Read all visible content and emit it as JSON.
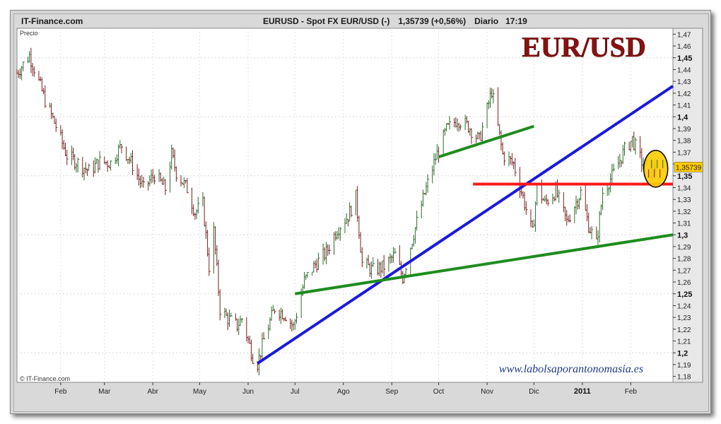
{
  "header": {
    "site": "IT-Finance.com",
    "instrument": "EURUSD - Spot FX EUR/USD (-)",
    "quote": "1,35739 (+0,56%)",
    "period": "Diario",
    "time": "17:19"
  },
  "plot_label": "Precio",
  "copyright": "© IT-Finance.com",
  "watermark": "www.labolsaporantonomasia.es",
  "big_title": "EUR/USD",
  "last_price_label": "1,35739",
  "colors": {
    "price_up": "#2e6b2e",
    "price_down": "#7a1f1f",
    "blue_trend": "#1a1adb",
    "green_trend": "#1e8c1e",
    "red_support": "#ff1a1a",
    "last_price_bg": "#ffcc00",
    "title": "#8b1010"
  },
  "chart_data": {
    "type": "line",
    "ylim": [
      1.175,
      1.475
    ],
    "yticks": [
      "1,47",
      "1,46",
      "1,45",
      "1,44",
      "1,43",
      "1,42",
      "1,41",
      "1,4",
      "1,39",
      "1,38",
      "1,37",
      "1,36",
      "1,35",
      "1,34",
      "1,33",
      "1,32",
      "1,31",
      "1,3",
      "1,29",
      "1,28",
      "1,27",
      "1,26",
      "1,25",
      "1,24",
      "1,23",
      "1,22",
      "1,21",
      "1,2",
      "1,19",
      "1,18"
    ],
    "yticks_bold": [
      "1,45",
      "1,4",
      "1,35",
      "1,3",
      "1,25",
      "1,2"
    ],
    "xticks": [
      {
        "label": "Feb",
        "x": "2010-02-01"
      },
      {
        "label": "Mar",
        "x": "2010-03-01"
      },
      {
        "label": "Abr",
        "x": "2010-04-01"
      },
      {
        "label": "May",
        "x": "2010-05-01"
      },
      {
        "label": "Jun",
        "x": "2010-06-01"
      },
      {
        "label": "Jul",
        "x": "2010-07-01"
      },
      {
        "label": "Ago",
        "x": "2010-08-01"
      },
      {
        "label": "Sep",
        "x": "2010-09-01"
      },
      {
        "label": "Oct",
        "x": "2010-10-01"
      },
      {
        "label": "Nov",
        "x": "2010-11-01"
      },
      {
        "label": "Dic",
        "x": "2010-12-01"
      },
      {
        "label": "2011",
        "x": "2011-01-01",
        "bold": true
      },
      {
        "label": "Feb",
        "x": "2011-02-01"
      }
    ],
    "xlim": [
      "2010-01-04",
      "2011-02-28"
    ],
    "series": [
      {
        "values": [
          [
            "2010-01-04",
            1.437
          ],
          [
            "2010-01-12",
            1.452
          ],
          [
            "2010-01-15",
            1.441
          ],
          [
            "2010-01-22",
            1.414
          ],
          [
            "2010-01-29",
            1.392
          ],
          [
            "2010-02-05",
            1.367
          ],
          [
            "2010-02-12",
            1.361
          ],
          [
            "2010-02-19",
            1.354
          ],
          [
            "2010-02-26",
            1.362
          ],
          [
            "2010-03-05",
            1.361
          ],
          [
            "2010-03-12",
            1.376
          ],
          [
            "2010-03-19",
            1.359
          ],
          [
            "2010-03-26",
            1.339
          ],
          [
            "2010-04-02",
            1.351
          ],
          [
            "2010-04-09",
            1.339
          ],
          [
            "2010-04-13",
            1.368
          ],
          [
            "2010-04-16",
            1.353
          ],
          [
            "2010-04-23",
            1.339
          ],
          [
            "2010-04-28",
            1.319
          ],
          [
            "2010-05-03",
            1.326
          ],
          [
            "2010-05-07",
            1.273
          ],
          [
            "2010-05-10",
            1.303
          ],
          [
            "2010-05-14",
            1.237
          ],
          [
            "2010-05-19",
            1.229
          ],
          [
            "2010-05-25",
            1.223
          ],
          [
            "2010-05-28",
            1.229
          ],
          [
            "2010-06-04",
            1.197
          ],
          [
            "2010-06-07",
            1.191
          ],
          [
            "2010-06-11",
            1.211
          ],
          [
            "2010-06-18",
            1.238
          ],
          [
            "2010-06-25",
            1.232
          ],
          [
            "2010-06-30",
            1.222
          ],
          [
            "2010-07-07",
            1.261
          ],
          [
            "2010-07-14",
            1.275
          ],
          [
            "2010-07-21",
            1.285
          ],
          [
            "2010-07-28",
            1.305
          ],
          [
            "2010-08-04",
            1.316
          ],
          [
            "2010-08-09",
            1.332
          ],
          [
            "2010-08-13",
            1.276
          ],
          [
            "2010-08-20",
            1.27
          ],
          [
            "2010-08-27",
            1.273
          ],
          [
            "2010-09-03",
            1.283
          ],
          [
            "2010-09-08",
            1.264
          ],
          [
            "2010-09-15",
            1.301
          ],
          [
            "2010-09-22",
            1.335
          ],
          [
            "2010-09-29",
            1.365
          ],
          [
            "2010-10-06",
            1.389
          ],
          [
            "2010-10-13",
            1.398
          ],
          [
            "2010-10-20",
            1.392
          ],
          [
            "2010-10-27",
            1.38
          ],
          [
            "2010-11-04",
            1.422
          ],
          [
            "2010-11-11",
            1.368
          ],
          [
            "2010-11-18",
            1.36
          ],
          [
            "2010-11-24",
            1.332
          ],
          [
            "2010-11-30",
            1.301
          ],
          [
            "2010-12-03",
            1.34
          ],
          [
            "2010-12-08",
            1.327
          ],
          [
            "2010-12-15",
            1.337
          ],
          [
            "2010-12-22",
            1.311
          ],
          [
            "2010-12-31",
            1.336
          ],
          [
            "2011-01-05",
            1.308
          ],
          [
            "2011-01-10",
            1.292
          ],
          [
            "2011-01-14",
            1.336
          ],
          [
            "2011-01-21",
            1.352
          ],
          [
            "2011-01-28",
            1.372
          ],
          [
            "2011-02-02",
            1.381
          ],
          [
            "2011-02-08",
            1.362
          ],
          [
            "2011-02-14",
            1.354
          ],
          [
            "2011-02-17",
            1.357
          ]
        ]
      }
    ],
    "trendlines": [
      {
        "color": "blue",
        "from": [
          "2010-06-07",
          1.191
        ],
        "to": [
          "2011-02-28",
          1.426
        ]
      },
      {
        "color": "green",
        "from": [
          "2010-07-01",
          1.25
        ],
        "to": [
          "2011-02-28",
          1.3
        ]
      },
      {
        "color": "green",
        "from": [
          "2010-10-01",
          1.366
        ],
        "to": [
          "2010-12-01",
          1.392
        ]
      },
      {
        "color": "red",
        "from": [
          "2010-10-23",
          1.343
        ],
        "to": [
          "2011-02-28",
          1.343
        ]
      }
    ],
    "last_price": 1.35739,
    "highlight_circle": [
      "2011-02-17",
      1.356
    ]
  }
}
